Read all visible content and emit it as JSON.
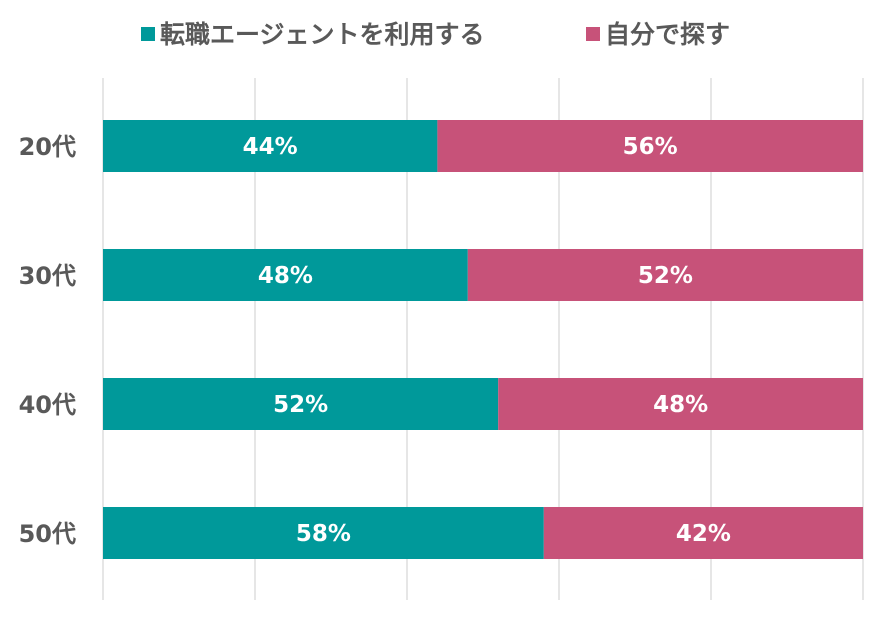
{
  "chart_data": {
    "type": "bar",
    "orientation": "horizontal",
    "stacked": "percent",
    "categories": [
      "20代",
      "30代",
      "40代",
      "50代"
    ],
    "series": [
      {
        "name": "転職エージェントを利用する",
        "values": [
          44,
          48,
          52,
          58
        ],
        "color": "#00999A"
      },
      {
        "name": "自分で探す",
        "values": [
          56,
          52,
          48,
          42
        ],
        "color": "#C75279"
      }
    ],
    "value_suffix": "%",
    "xlim": [
      0,
      100
    ],
    "grid": true,
    "legend_position": "top"
  }
}
